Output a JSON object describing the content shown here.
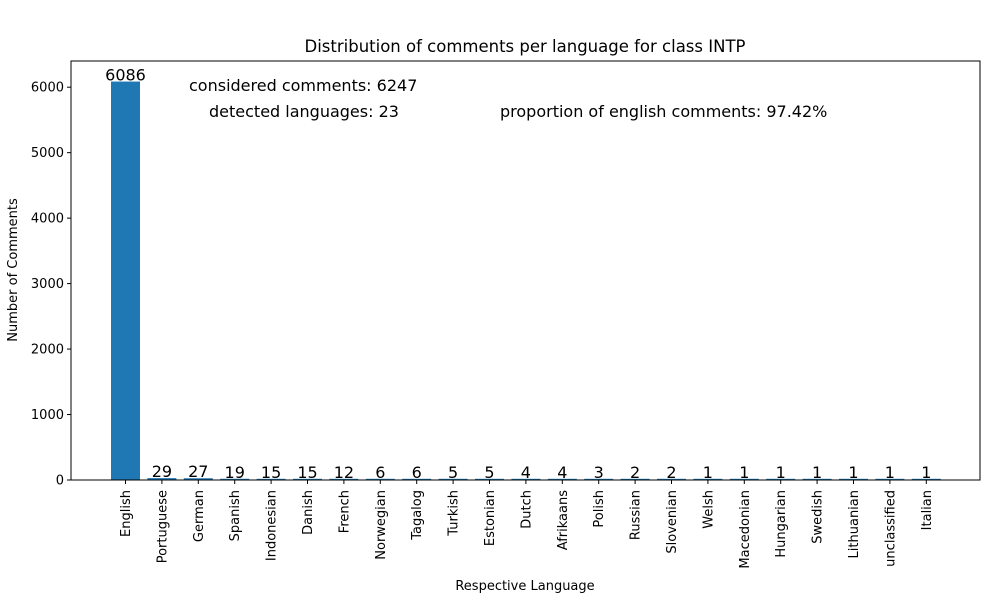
{
  "chart_data": {
    "type": "bar",
    "title": "Distribution of comments per language for class INTP",
    "xlabel": "Respective Language",
    "ylabel": "Number of Comments",
    "categories": [
      "English",
      "Portuguese",
      "German",
      "Spanish",
      "Indonesian",
      "Danish",
      "French",
      "Norwegian",
      "Tagalog",
      "Turkish",
      "Estonian",
      "Dutch",
      "Afrikaans",
      "Polish",
      "Russian",
      "Slovenian",
      "Welsh",
      "Macedonian",
      "Hungarian",
      "Swedish",
      "Lithuanian",
      "unclassified",
      "Italian"
    ],
    "values": [
      6086,
      29,
      27,
      19,
      15,
      15,
      12,
      6,
      6,
      5,
      5,
      4,
      4,
      3,
      2,
      2,
      1,
      1,
      1,
      1,
      1,
      1,
      1
    ],
    "ylim": [
      0,
      6400
    ],
    "yticks": [
      0,
      1000,
      2000,
      3000,
      4000,
      5000,
      6000
    ],
    "grid": false,
    "bar_color": "#1f77b4",
    "annotations": {
      "considered": "considered comments: 6247",
      "detected": "detected languages: 23",
      "proportion": "proportion of english comments: 97.42%"
    }
  }
}
